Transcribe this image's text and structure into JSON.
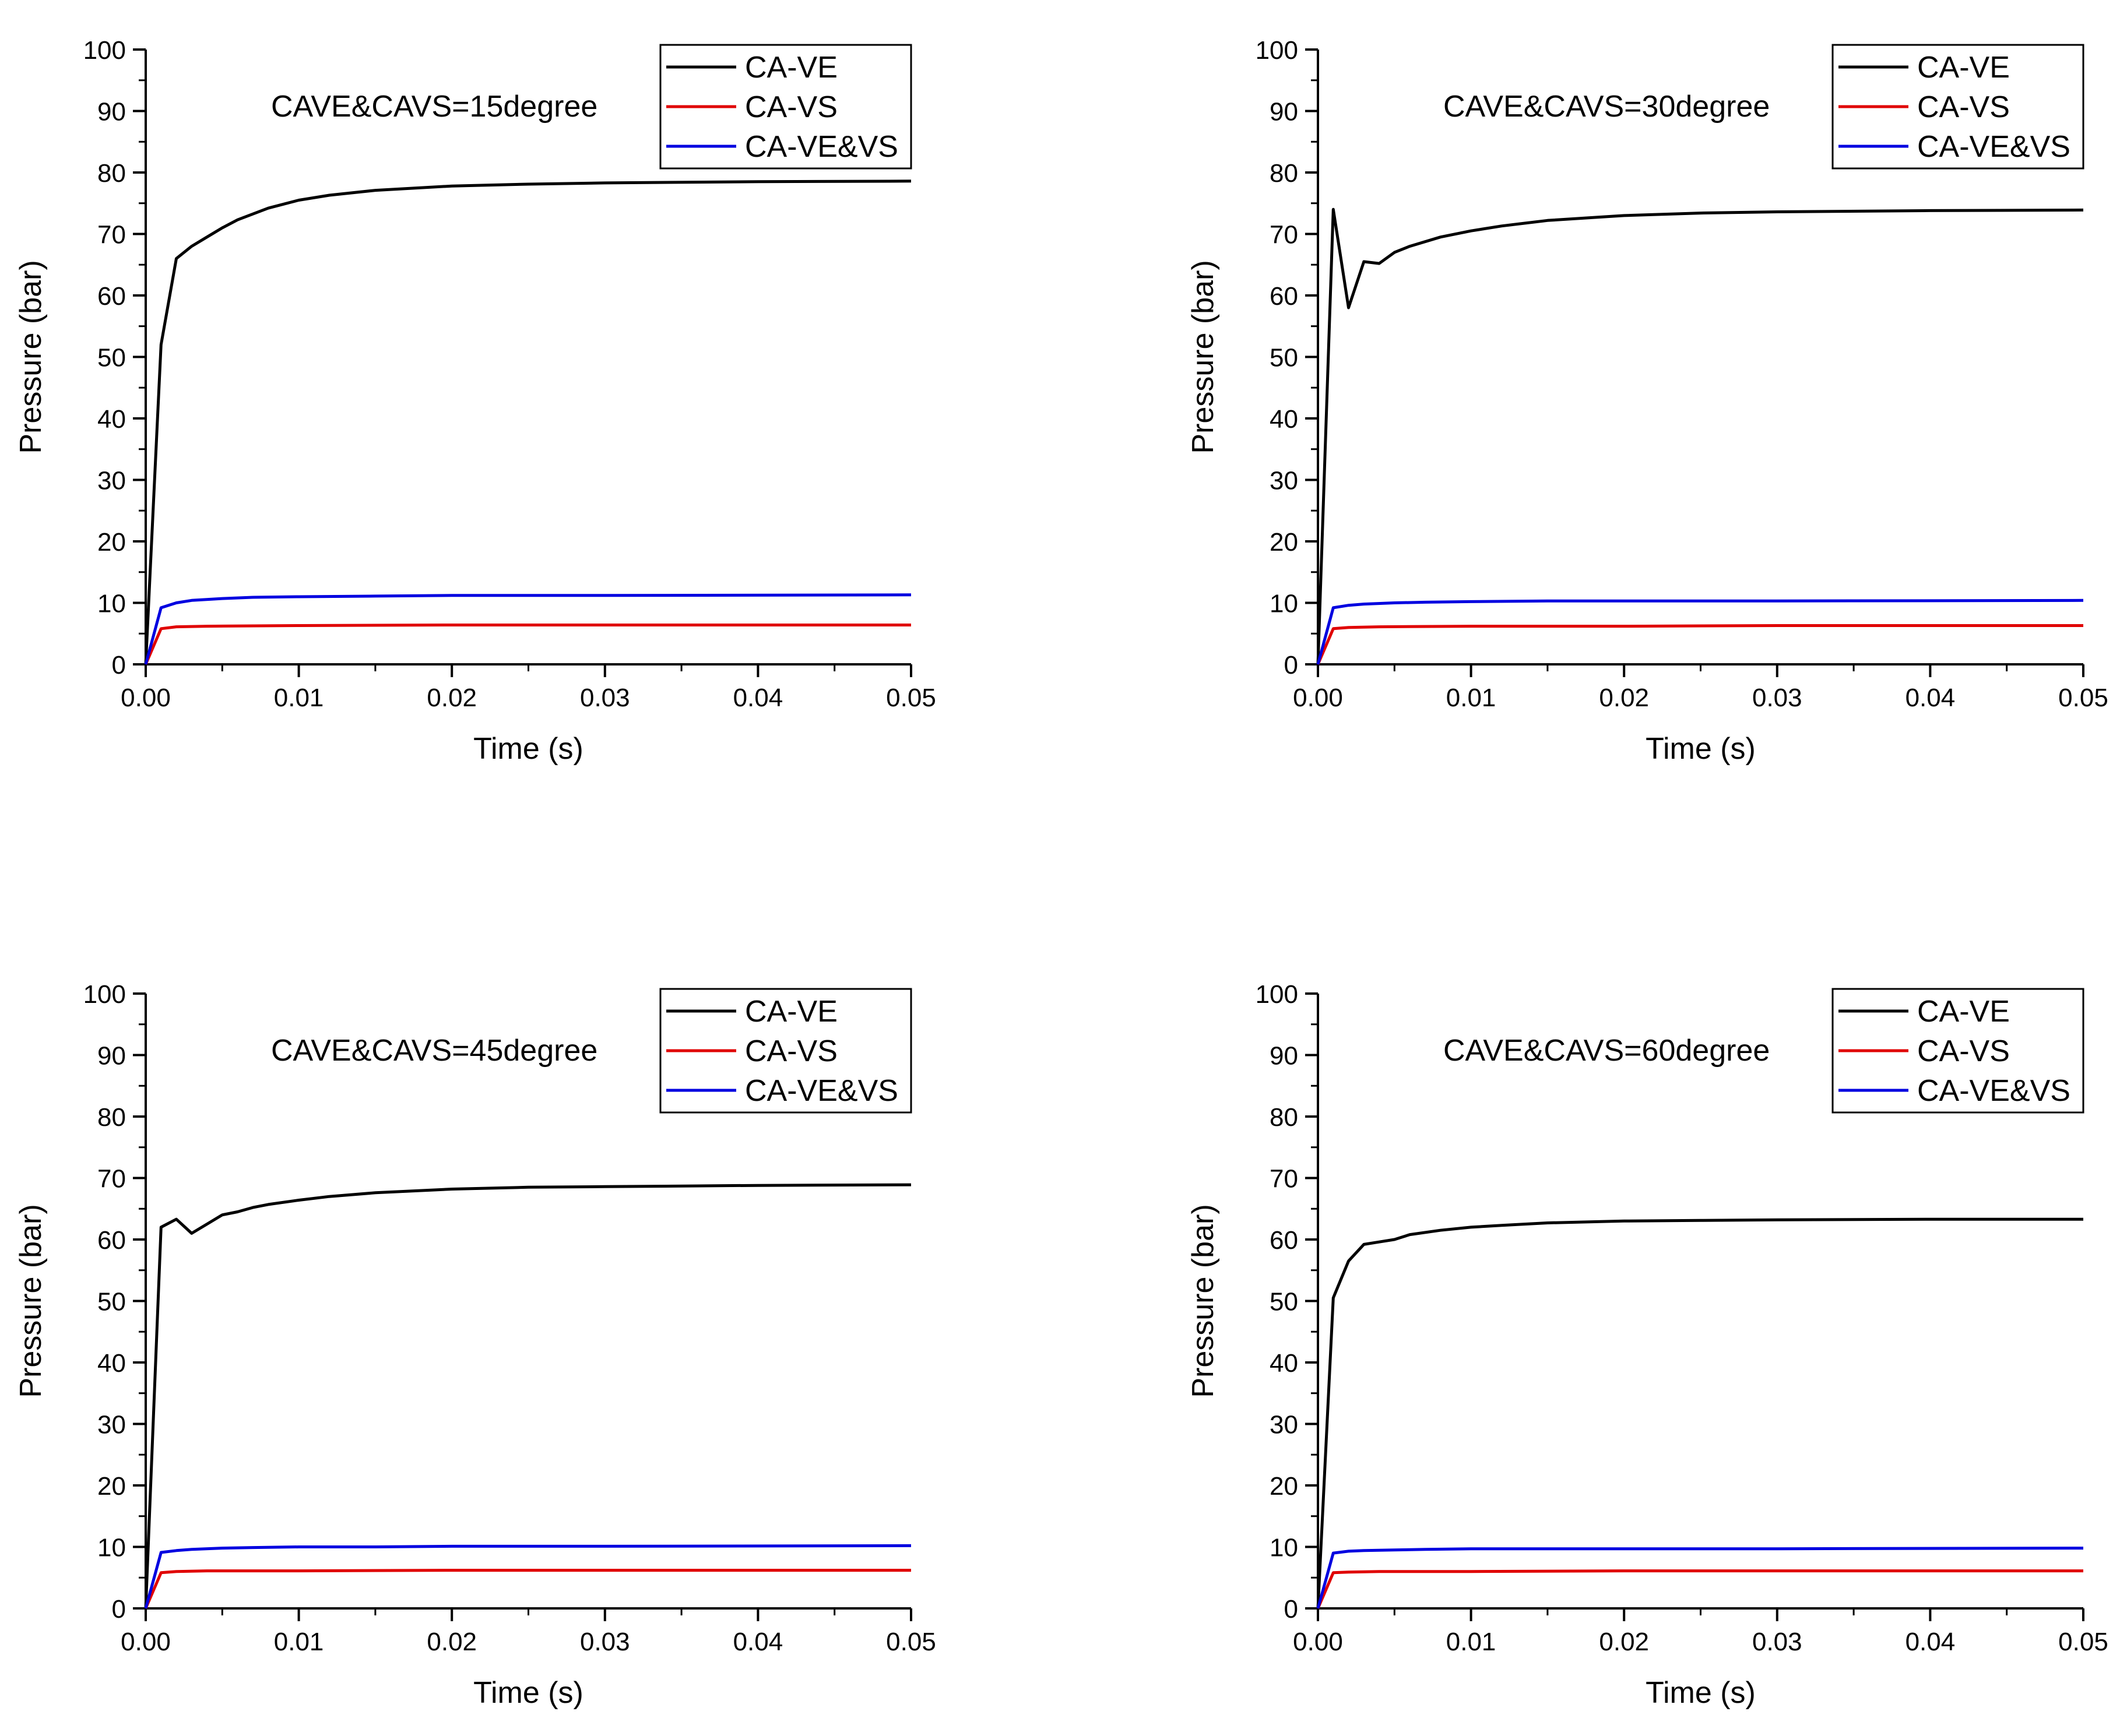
{
  "chart_data": [
    {
      "type": "line",
      "annotation": "CAVE&CAVS=15degree",
      "xlabel": "Time (s)",
      "ylabel": "Pressure (bar)",
      "xlim": [
        0.0,
        0.05
      ],
      "ylim": [
        0,
        100
      ],
      "xticks": [
        "0.00",
        "0.01",
        "0.02",
        "0.03",
        "0.04",
        "0.05"
      ],
      "yticks": [
        "0",
        "10",
        "20",
        "30",
        "40",
        "50",
        "60",
        "70",
        "80",
        "90",
        "100"
      ],
      "legend_position": "top-right",
      "series": [
        {
          "name": "CA-VE",
          "color": "#000000",
          "x": [
            0,
            0.001,
            0.002,
            0.003,
            0.004,
            0.005,
            0.006,
            0.008,
            0.01,
            0.012,
            0.015,
            0.02,
            0.025,
            0.03,
            0.04,
            0.05
          ],
          "y": [
            0,
            52,
            66,
            68,
            69.5,
            71,
            72.3,
            74.2,
            75.5,
            76.3,
            77.1,
            77.8,
            78.1,
            78.3,
            78.5,
            78.6
          ]
        },
        {
          "name": "CA-VS",
          "color": "#e00000",
          "x": [
            0,
            0.001,
            0.002,
            0.004,
            0.01,
            0.02,
            0.03,
            0.05
          ],
          "y": [
            0,
            5.8,
            6.1,
            6.2,
            6.3,
            6.4,
            6.4,
            6.4
          ]
        },
        {
          "name": "CA-VE&VS",
          "color": "#0000e0",
          "x": [
            0,
            0.001,
            0.002,
            0.003,
            0.005,
            0.007,
            0.01,
            0.015,
            0.02,
            0.03,
            0.05
          ],
          "y": [
            0,
            9.2,
            10,
            10.4,
            10.7,
            10.9,
            11,
            11.1,
            11.2,
            11.2,
            11.3
          ]
        }
      ]
    },
    {
      "type": "line",
      "annotation": "CAVE&CAVS=30degree",
      "xlabel": "Time (s)",
      "ylabel": "Pressure (bar)",
      "xlim": [
        0.0,
        0.05
      ],
      "ylim": [
        0,
        100
      ],
      "xticks": [
        "0.00",
        "0.01",
        "0.02",
        "0.03",
        "0.04",
        "0.05"
      ],
      "yticks": [
        "0",
        "10",
        "20",
        "30",
        "40",
        "50",
        "60",
        "70",
        "80",
        "90",
        "100"
      ],
      "legend_position": "top-right",
      "series": [
        {
          "name": "CA-VE",
          "color": "#000000",
          "x": [
            0,
            0.001,
            0.002,
            0.003,
            0.004,
            0.005,
            0.006,
            0.008,
            0.01,
            0.012,
            0.015,
            0.02,
            0.025,
            0.03,
            0.04,
            0.05
          ],
          "y": [
            0,
            74,
            58,
            65.5,
            65.2,
            67,
            68,
            69.5,
            70.5,
            71.3,
            72.2,
            73,
            73.4,
            73.6,
            73.8,
            73.9
          ]
        },
        {
          "name": "CA-VS",
          "color": "#e00000",
          "x": [
            0,
            0.001,
            0.002,
            0.004,
            0.01,
            0.02,
            0.03,
            0.05
          ],
          "y": [
            0,
            5.8,
            6,
            6.1,
            6.2,
            6.2,
            6.3,
            6.3
          ]
        },
        {
          "name": "CA-VE&VS",
          "color": "#0000e0",
          "x": [
            0,
            0.001,
            0.002,
            0.003,
            0.005,
            0.007,
            0.01,
            0.015,
            0.02,
            0.03,
            0.05
          ],
          "y": [
            0,
            9.2,
            9.6,
            9.8,
            10,
            10.1,
            10.2,
            10.3,
            10.3,
            10.3,
            10.4
          ]
        }
      ]
    },
    {
      "type": "line",
      "annotation": "CAVE&CAVS=45degree",
      "xlabel": "Time (s)",
      "ylabel": "Pressure (bar)",
      "xlim": [
        0.0,
        0.05
      ],
      "ylim": [
        0,
        100
      ],
      "xticks": [
        "0.00",
        "0.01",
        "0.02",
        "0.03",
        "0.04",
        "0.05"
      ],
      "yticks": [
        "0",
        "10",
        "20",
        "30",
        "40",
        "50",
        "60",
        "70",
        "80",
        "90",
        "100"
      ],
      "legend_position": "top-right",
      "series": [
        {
          "name": "CA-VE",
          "color": "#000000",
          "x": [
            0,
            0.001,
            0.002,
            0.003,
            0.004,
            0.005,
            0.006,
            0.007,
            0.008,
            0.01,
            0.012,
            0.015,
            0.02,
            0.025,
            0.03,
            0.04,
            0.05
          ],
          "y": [
            0,
            62,
            63.3,
            61,
            62.5,
            64,
            64.5,
            65.2,
            65.7,
            66.4,
            67,
            67.6,
            68.2,
            68.5,
            68.6,
            68.8,
            68.9
          ]
        },
        {
          "name": "CA-VS",
          "color": "#e00000",
          "x": [
            0,
            0.001,
            0.002,
            0.004,
            0.01,
            0.02,
            0.03,
            0.05
          ],
          "y": [
            0,
            5.8,
            6,
            6.1,
            6.1,
            6.2,
            6.2,
            6.2
          ]
        },
        {
          "name": "CA-VE&VS",
          "color": "#0000e0",
          "x": [
            0,
            0.001,
            0.002,
            0.003,
            0.005,
            0.007,
            0.01,
            0.015,
            0.02,
            0.03,
            0.05
          ],
          "y": [
            0,
            9.1,
            9.4,
            9.6,
            9.8,
            9.9,
            10,
            10,
            10.1,
            10.1,
            10.2
          ]
        }
      ]
    },
    {
      "type": "line",
      "annotation": "CAVE&CAVS=60degree",
      "xlabel": "Time (s)",
      "ylabel": "Pressure (bar)",
      "xlim": [
        0.0,
        0.05
      ],
      "ylim": [
        0,
        100
      ],
      "xticks": [
        "0.00",
        "0.01",
        "0.02",
        "0.03",
        "0.04",
        "0.05"
      ],
      "yticks": [
        "0",
        "10",
        "20",
        "30",
        "40",
        "50",
        "60",
        "70",
        "80",
        "90",
        "100"
      ],
      "legend_position": "top-right",
      "series": [
        {
          "name": "CA-VE",
          "color": "#000000",
          "x": [
            0,
            0.001,
            0.002,
            0.003,
            0.004,
            0.005,
            0.006,
            0.008,
            0.01,
            0.012,
            0.015,
            0.02,
            0.025,
            0.03,
            0.04,
            0.05
          ],
          "y": [
            0,
            50.5,
            56.5,
            59.2,
            59.6,
            60,
            60.8,
            61.5,
            62,
            62.3,
            62.7,
            63,
            63.1,
            63.2,
            63.3,
            63.3
          ]
        },
        {
          "name": "CA-VS",
          "color": "#e00000",
          "x": [
            0,
            0.001,
            0.002,
            0.004,
            0.01,
            0.02,
            0.03,
            0.05
          ],
          "y": [
            0,
            5.8,
            5.9,
            6,
            6,
            6.1,
            6.1,
            6.1
          ]
        },
        {
          "name": "CA-VE&VS",
          "color": "#0000e0",
          "x": [
            0,
            0.001,
            0.002,
            0.003,
            0.005,
            0.007,
            0.01,
            0.015,
            0.02,
            0.03,
            0.05
          ],
          "y": [
            0,
            9,
            9.3,
            9.4,
            9.5,
            9.6,
            9.7,
            9.7,
            9.7,
            9.7,
            9.8
          ]
        }
      ]
    }
  ]
}
